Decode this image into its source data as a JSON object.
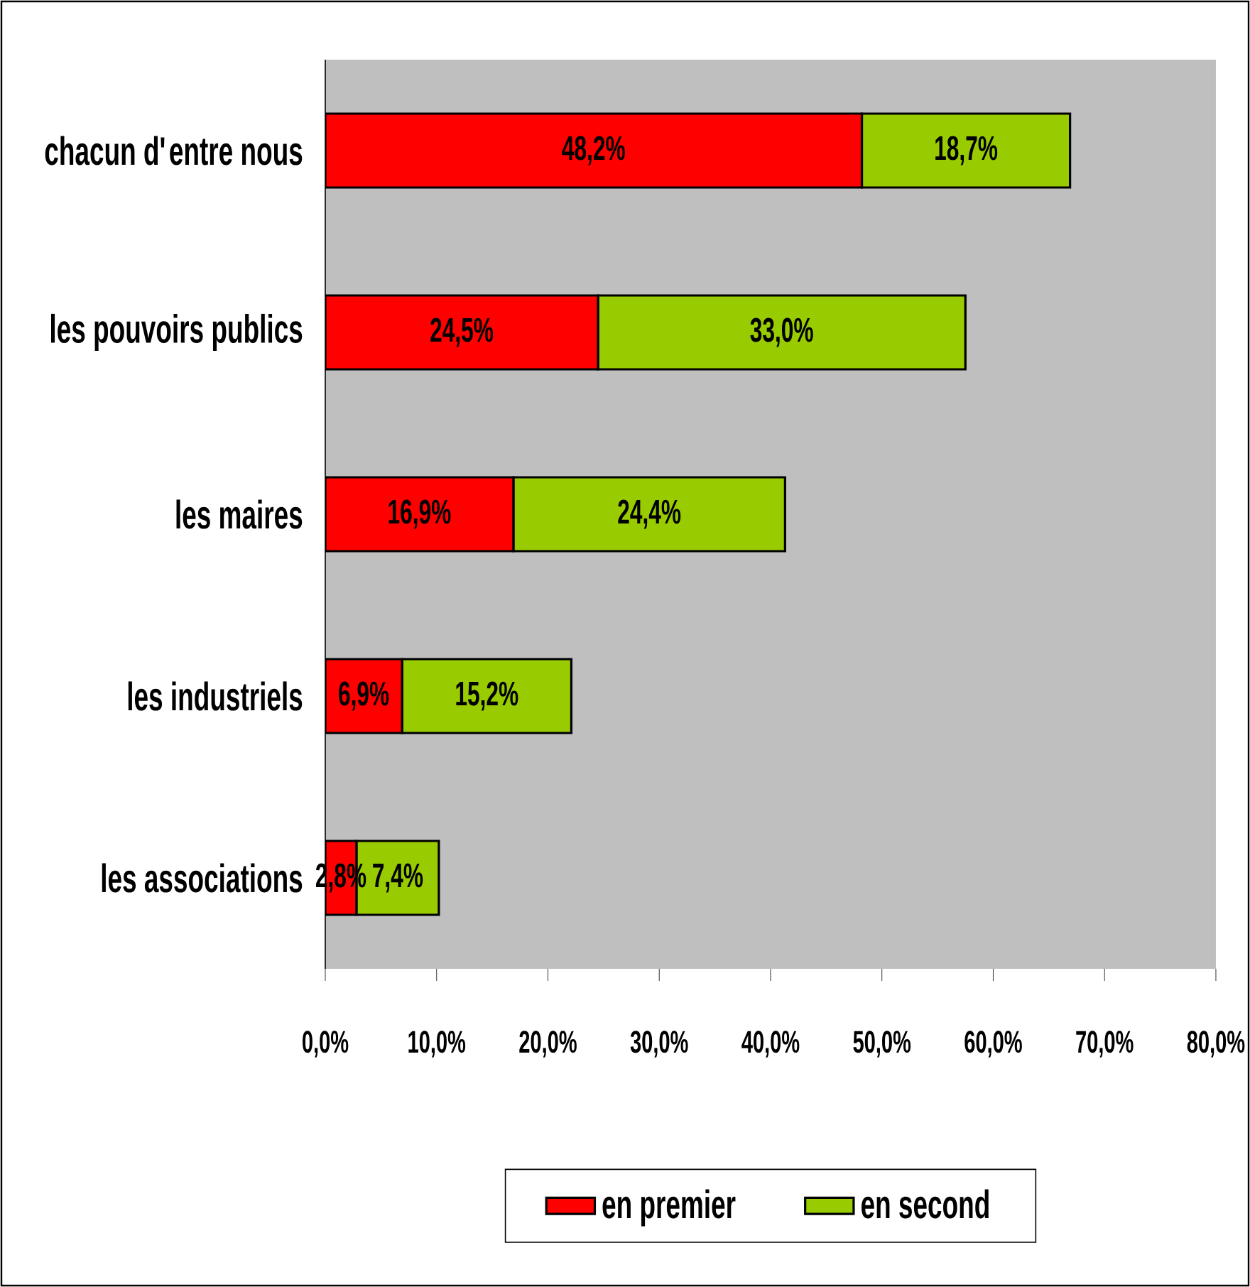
{
  "chart_data": {
    "type": "bar",
    "orientation": "horizontal",
    "stacked": true,
    "categories": [
      "chacun d'entre nous",
      "les pouvoirs publics",
      "les maires",
      "les industriels",
      "les associations"
    ],
    "series": [
      {
        "name": "en premier",
        "color": "#ff0000",
        "values": [
          48.2,
          24.5,
          16.9,
          6.9,
          2.8
        ],
        "value_labels": [
          "48,2%",
          "24,5%",
          "16,9%",
          "6,9%",
          "2,8%"
        ]
      },
      {
        "name": "en second",
        "color": "#99cc00",
        "values": [
          18.7,
          33.0,
          24.4,
          15.2,
          7.4
        ],
        "value_labels": [
          "18,7%",
          "33,0%",
          "24,4%",
          "15,2%",
          "7,4%"
        ]
      }
    ],
    "xlim": [
      0,
      80
    ],
    "xticks": [
      {
        "value": 0,
        "label": "0,0%"
      },
      {
        "value": 10,
        "label": "10,0%"
      },
      {
        "value": 20,
        "label": "20,0%"
      },
      {
        "value": 30,
        "label": "30,0%"
      },
      {
        "value": 40,
        "label": "40,0%"
      },
      {
        "value": 50,
        "label": "50,0%"
      },
      {
        "value": 60,
        "label": "60,0%"
      },
      {
        "value": 70,
        "label": "70,0%"
      },
      {
        "value": 80,
        "label": "80,0%"
      }
    ],
    "legend": "bottom"
  }
}
